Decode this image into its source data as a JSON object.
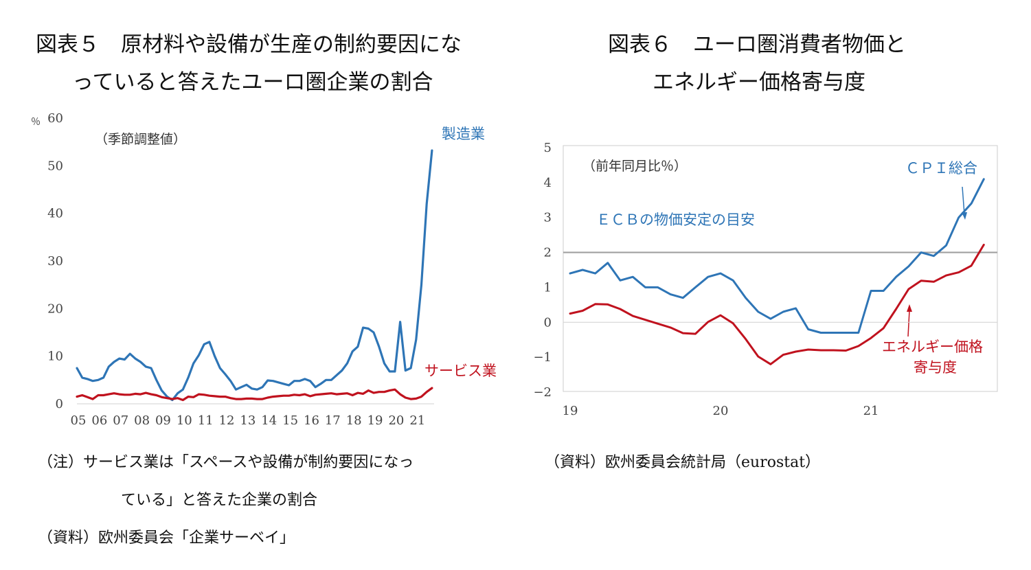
{
  "figure5": {
    "title_line1": "図表５　原材料や設備が生産の制約要因にな",
    "title_line2": "っていると答えたユーロ圏企業の割合",
    "unit": "％",
    "annotation": "（季節調整値）",
    "label_manufacturing": "製造業",
    "label_services": "サービス業",
    "note_line1": "（注）サービス業は「スペースや設備が制約要因になっ",
    "note_line2": "ている」と答えた企業の割合",
    "source": "（資料）欧州委員会「企業サーベイ」"
  },
  "figure6": {
    "title_line1": "図表６　ユーロ圏消費者物価と",
    "title_line2": "エネルギー価格寄与度",
    "annotation": "（前年同月比％）",
    "label_cpi": "ＣＰＩ総合",
    "label_target": "ＥＣＢの物価安定の目安",
    "label_energy_1": "エネルギー価格",
    "label_energy_2": "寄与度",
    "source": "（資料）欧州委員会統計局（eurostat）"
  },
  "colors": {
    "blue": "#2e75b6",
    "red": "#c0121e",
    "grey": "#a0a0a0"
  },
  "chart_data": [
    {
      "type": "line",
      "ylim": [
        0,
        60
      ],
      "yticks": [
        0,
        10,
        20,
        30,
        40,
        50,
        60
      ],
      "xlim": [
        2005,
        2021.85
      ],
      "xticks": [
        "05",
        "06",
        "07",
        "08",
        "09",
        "10",
        "11",
        "12",
        "13",
        "14",
        "15",
        "16",
        "17",
        "18",
        "19",
        "20",
        "21"
      ],
      "series": [
        {
          "name": "製造業",
          "color": "blue",
          "x": [
            2005.0,
            2005.25,
            2005.5,
            2005.75,
            2006.0,
            2006.25,
            2006.5,
            2006.75,
            2007.0,
            2007.25,
            2007.5,
            2007.75,
            2008.0,
            2008.25,
            2008.5,
            2008.75,
            2009.0,
            2009.25,
            2009.5,
            2009.75,
            2010.0,
            2010.25,
            2010.5,
            2010.75,
            2011.0,
            2011.25,
            2011.5,
            2011.75,
            2012.0,
            2012.25,
            2012.5,
            2012.75,
            2013.0,
            2013.25,
            2013.5,
            2013.75,
            2014.0,
            2014.25,
            2014.5,
            2014.75,
            2015.0,
            2015.25,
            2015.5,
            2015.75,
            2016.0,
            2016.25,
            2016.5,
            2016.75,
            2017.0,
            2017.25,
            2017.5,
            2017.75,
            2018.0,
            2018.25,
            2018.5,
            2018.75,
            2019.0,
            2019.25,
            2019.5,
            2019.75,
            2020.0,
            2020.25,
            2020.5,
            2020.75,
            2021.0,
            2021.25,
            2021.5,
            2021.75
          ],
          "values": [
            7.5,
            5.5,
            5.2,
            4.8,
            5.0,
            5.5,
            7.8,
            8.8,
            9.5,
            9.3,
            10.5,
            9.5,
            8.8,
            7.8,
            7.5,
            5.0,
            2.8,
            1.5,
            0.8,
            2.2,
            3.0,
            5.5,
            8.5,
            10.2,
            12.5,
            13.0,
            10.0,
            7.5,
            6.2,
            4.8,
            3.0,
            3.5,
            4.0,
            3.2,
            3.0,
            3.5,
            4.9,
            4.8,
            4.5,
            4.2,
            3.9,
            4.8,
            4.8,
            5.2,
            4.8,
            3.5,
            4.2,
            5.0,
            5.0,
            6.0,
            7.0,
            8.5,
            11.0,
            12.0,
            16.0,
            15.8,
            15.0,
            12.0,
            8.5,
            6.8,
            6.8,
            17.2,
            7.0,
            7.5,
            13.5,
            25.0,
            42.0,
            53.2
          ]
        },
        {
          "name": "サービス業",
          "color": "red",
          "x": [
            2005.0,
            2005.25,
            2005.5,
            2005.75,
            2006.0,
            2006.25,
            2006.5,
            2006.75,
            2007.0,
            2007.25,
            2007.5,
            2007.75,
            2008.0,
            2008.25,
            2008.5,
            2008.75,
            2009.0,
            2009.25,
            2009.5,
            2009.75,
            2010.0,
            2010.25,
            2010.5,
            2010.75,
            2011.0,
            2011.25,
            2011.5,
            2011.75,
            2012.0,
            2012.25,
            2012.5,
            2012.75,
            2013.0,
            2013.25,
            2013.5,
            2013.75,
            2014.0,
            2014.25,
            2014.5,
            2014.75,
            2015.0,
            2015.25,
            2015.5,
            2015.75,
            2016.0,
            2016.25,
            2016.5,
            2016.75,
            2017.0,
            2017.25,
            2017.5,
            2017.75,
            2018.0,
            2018.25,
            2018.5,
            2018.75,
            2019.0,
            2019.25,
            2019.5,
            2019.75,
            2020.0,
            2020.25,
            2020.5,
            2020.75,
            2021.0,
            2021.25,
            2021.5,
            2021.75
          ],
          "values": [
            1.5,
            1.8,
            1.4,
            1.0,
            1.8,
            1.8,
            2.0,
            2.2,
            2.0,
            1.9,
            1.9,
            2.1,
            2.0,
            2.3,
            2.0,
            1.8,
            1.4,
            1.2,
            1.0,
            1.2,
            0.8,
            1.5,
            1.4,
            2.0,
            1.9,
            1.7,
            1.6,
            1.5,
            1.5,
            1.2,
            1.0,
            1.0,
            1.1,
            1.1,
            1.0,
            1.0,
            1.3,
            1.5,
            1.6,
            1.7,
            1.7,
            1.9,
            1.8,
            2.0,
            1.6,
            1.9,
            2.0,
            2.1,
            2.2,
            2.0,
            2.1,
            2.2,
            1.8,
            2.3,
            2.1,
            2.8,
            2.3,
            2.5,
            2.5,
            2.8,
            3.0,
            2.0,
            1.3,
            1.0,
            1.1,
            1.5,
            2.5,
            3.3
          ]
        }
      ]
    },
    {
      "type": "line",
      "ylim": [
        -2,
        5
      ],
      "yticks": [
        -2,
        -1,
        0,
        1,
        2,
        3,
        4,
        5
      ],
      "xlim": [
        2019.0,
        2021.84
      ],
      "xticks": [
        "19",
        "20",
        "21"
      ],
      "reference_line": 2,
      "series": [
        {
          "name": "ＣＰＩ総合",
          "color": "blue",
          "x": [
            2019.0,
            2019.083,
            2019.167,
            2019.25,
            2019.333,
            2019.417,
            2019.5,
            2019.583,
            2019.667,
            2019.75,
            2019.833,
            2019.917,
            2020.0,
            2020.083,
            2020.167,
            2020.25,
            2020.333,
            2020.417,
            2020.5,
            2020.583,
            2020.667,
            2020.75,
            2020.833,
            2020.917,
            2021.0,
            2021.083,
            2021.167,
            2021.25,
            2021.333,
            2021.417,
            2021.5,
            2021.583,
            2021.667,
            2021.75
          ],
          "values": [
            1.4,
            1.5,
            1.4,
            1.7,
            1.2,
            1.3,
            1.0,
            1.0,
            0.8,
            0.7,
            1.0,
            1.3,
            1.4,
            1.2,
            0.7,
            0.3,
            0.1,
            0.3,
            0.4,
            -0.2,
            -0.3,
            -0.3,
            -0.3,
            -0.3,
            0.9,
            0.9,
            1.3,
            1.6,
            2.0,
            1.9,
            2.2,
            3.0,
            3.4,
            4.1
          ]
        },
        {
          "name": "エネルギー価格寄与度",
          "color": "red",
          "x": [
            2019.0,
            2019.083,
            2019.167,
            2019.25,
            2019.333,
            2019.417,
            2019.5,
            2019.583,
            2019.667,
            2019.75,
            2019.833,
            2019.917,
            2020.0,
            2020.083,
            2020.167,
            2020.25,
            2020.333,
            2020.417,
            2020.5,
            2020.583,
            2020.667,
            2020.75,
            2020.833,
            2020.917,
            2021.0,
            2021.083,
            2021.167,
            2021.25,
            2021.333,
            2021.417,
            2021.5,
            2021.583,
            2021.667,
            2021.75
          ],
          "values": [
            0.25,
            0.33,
            0.52,
            0.51,
            0.38,
            0.18,
            0.07,
            -0.04,
            -0.15,
            -0.31,
            -0.33,
            0.01,
            0.2,
            -0.03,
            -0.48,
            -0.98,
            -1.2,
            -0.93,
            -0.84,
            -0.78,
            -0.8,
            -0.8,
            -0.81,
            -0.68,
            -0.45,
            -0.17,
            0.38,
            0.95,
            1.19,
            1.16,
            1.34,
            1.43,
            1.62,
            2.22
          ]
        }
      ]
    }
  ]
}
